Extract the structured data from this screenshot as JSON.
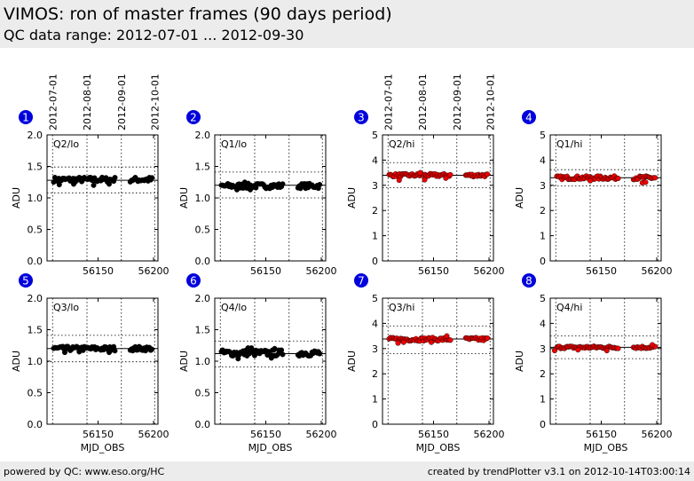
{
  "header": {
    "title": "VIMOS: ron of master frames (90 days period)",
    "subtitle": "QC data range: 2012-07-01 ... 2012-09-30"
  },
  "footer": {
    "left": "powered by QC: www.eso.org/HC",
    "right": "created by trendPlotter v3.1 on 2012-10-14T03:00:14"
  },
  "colors": {
    "black_series": "#000000",
    "red_series": "#ee0000",
    "badge": "#0000dd",
    "grid": "#000000",
    "header_bg": "#ececec"
  },
  "date_axis": {
    "labels": [
      "2012-07-01",
      "2012-08-01",
      "2012-09-01",
      "2012-10-01"
    ],
    "mjd": [
      56109,
      56140,
      56171,
      56201
    ],
    "shown_on_panels": [
      1,
      3
    ]
  },
  "chart_data": [
    {
      "id": 1,
      "badge": "1",
      "type": "scatter",
      "label": "Q2/lo",
      "ylabel": "ADU",
      "xlabel": "",
      "ylim": [
        0,
        2.0
      ],
      "yticks": [
        "0.0",
        "0.5",
        "1.0",
        "1.5",
        "2.0"
      ],
      "xlim": [
        56104,
        56204
      ],
      "xticks": [
        56150,
        56200
      ],
      "xticklabels": [
        "56150",
        "56200"
      ],
      "grid": true,
      "ref_line": 1.28,
      "limits": [
        1.49,
        1.08
      ],
      "color": "#000000",
      "center": 1.29,
      "spread": 0.04,
      "outliers": [
        [
          56115,
          1.21
        ],
        [
          56128,
          1.22
        ],
        [
          56146,
          1.2
        ],
        [
          56160,
          1.22
        ]
      ]
    },
    {
      "id": 2,
      "badge": "2",
      "type": "scatter",
      "label": "Q1/lo",
      "ylabel": "ADU",
      "xlabel": "",
      "ylim": [
        0,
        2.0
      ],
      "yticks": [
        "0.0",
        "0.5",
        "1.0",
        "1.5",
        "2.0"
      ],
      "xlim": [
        56104,
        56204
      ],
      "xticks": [
        56150,
        56200
      ],
      "xticklabels": [
        "56150",
        "56200"
      ],
      "grid": true,
      "ref_line": 1.2,
      "limits": [
        1.41,
        1.0
      ],
      "color": "#000000",
      "center": 1.19,
      "spread": 0.04,
      "outliers": [
        [
          56124,
          1.13
        ],
        [
          56131,
          1.25
        ],
        [
          56136,
          1.13
        ]
      ]
    },
    {
      "id": 3,
      "badge": "3",
      "type": "scatter",
      "label": "Q2/hi",
      "ylabel": "ADU",
      "xlabel": "",
      "ylim": [
        0,
        5
      ],
      "yticks": [
        "0",
        "1",
        "2",
        "3",
        "4",
        "5"
      ],
      "xlim": [
        56104,
        56204
      ],
      "xticks": [
        56150,
        56200
      ],
      "xticklabels": [
        "56150",
        "56200"
      ],
      "grid": true,
      "ref_line": 3.4,
      "limits": [
        3.9,
        2.9
      ],
      "color": "#ee0000",
      "center": 3.4,
      "spread": 0.06,
      "outliers": [
        [
          56119,
          3.2
        ],
        [
          56138,
          3.5
        ],
        [
          56142,
          3.22
        ],
        [
          56161,
          3.28
        ]
      ]
    },
    {
      "id": 4,
      "badge": "4",
      "type": "scatter",
      "label": "Q1/hi",
      "ylabel": "ADU",
      "xlabel": "",
      "ylim": [
        0,
        5
      ],
      "yticks": [
        "0",
        "1",
        "2",
        "3",
        "4",
        "5"
      ],
      "xlim": [
        56104,
        56204
      ],
      "xticks": [
        56150,
        56200
      ],
      "xticklabels": [
        "56150",
        "56200"
      ],
      "grid": true,
      "ref_line": 3.3,
      "limits": [
        3.62,
        2.98
      ],
      "color": "#ee0000",
      "center": 3.3,
      "spread": 0.07,
      "outliers": [
        [
          56140,
          3.18
        ],
        [
          56187,
          3.1
        ],
        [
          56190,
          3.12
        ]
      ]
    },
    {
      "id": 5,
      "badge": "5",
      "type": "scatter",
      "label": "Q3/lo",
      "ylabel": "ADU",
      "xlabel": "MJD_OBS",
      "ylim": [
        0,
        2.0
      ],
      "yticks": [
        "0.0",
        "0.5",
        "1.0",
        "1.5",
        "2.0"
      ],
      "xlim": [
        56104,
        56204
      ],
      "xticks": [
        56150,
        56200
      ],
      "xticklabels": [
        "56150",
        "56200"
      ],
      "grid": true,
      "ref_line": 1.2,
      "limits": [
        1.41,
        0.99
      ],
      "color": "#000000",
      "center": 1.2,
      "spread": 0.035,
      "outliers": [
        [
          56120,
          1.14
        ],
        [
          56133,
          1.15
        ],
        [
          56160,
          1.14
        ]
      ]
    },
    {
      "id": 6,
      "badge": "6",
      "type": "scatter",
      "label": "Q4/lo",
      "ylabel": "ADU",
      "xlabel": "MJD_OBS",
      "ylim": [
        0,
        2.0
      ],
      "yticks": [
        "0.0",
        "0.5",
        "1.0",
        "1.5",
        "2.0"
      ],
      "xlim": [
        56104,
        56204
      ],
      "xticks": [
        56150,
        56200
      ],
      "xticklabels": [
        "56150",
        "56200"
      ],
      "grid": true,
      "ref_line": 1.12,
      "limits": [
        1.32,
        0.91
      ],
      "color": "#000000",
      "center": 1.13,
      "spread": 0.05,
      "outliers": [
        [
          56125,
          1.04
        ],
        [
          56134,
          1.21
        ],
        [
          56137,
          1.21
        ],
        [
          56155,
          1.05
        ],
        [
          56158,
          1.2
        ]
      ]
    },
    {
      "id": 7,
      "badge": "7",
      "type": "scatter",
      "label": "Q3/hi",
      "ylabel": "ADU",
      "xlabel": "MJD_OBS",
      "ylim": [
        0,
        5
      ],
      "yticks": [
        "0",
        "1",
        "2",
        "3",
        "4",
        "5"
      ],
      "xlim": [
        56104,
        56204
      ],
      "xticks": [
        56150,
        56200
      ],
      "xticklabels": [
        "56150",
        "56200"
      ],
      "grid": true,
      "ref_line": 3.38,
      "limits": [
        3.9,
        2.8
      ],
      "color": "#ee0000",
      "center": 3.37,
      "spread": 0.07,
      "outliers": [
        [
          56118,
          3.22
        ],
        [
          56123,
          3.25
        ],
        [
          56148,
          3.25
        ],
        [
          56162,
          3.5
        ]
      ]
    },
    {
      "id": 8,
      "badge": "8",
      "type": "scatter",
      "label": "Q4/hi",
      "ylabel": "ADU",
      "xlabel": "MJD_OBS",
      "ylim": [
        0,
        5
      ],
      "yticks": [
        "0",
        "1",
        "2",
        "3",
        "4",
        "5"
      ],
      "xlim": [
        56104,
        56204
      ],
      "xticks": [
        56150,
        56200
      ],
      "xticklabels": [
        "56150",
        "56200"
      ],
      "grid": true,
      "ref_line": 3.05,
      "limits": [
        3.5,
        2.6
      ],
      "color": "#ee0000",
      "center": 3.05,
      "spread": 0.05,
      "outliers": [
        [
          56108,
          2.92
        ],
        [
          56129,
          2.95
        ],
        [
          56155,
          2.92
        ],
        [
          56196,
          3.15
        ]
      ]
    }
  ],
  "data_gaps": [
    [
      56166,
      56178
    ]
  ]
}
